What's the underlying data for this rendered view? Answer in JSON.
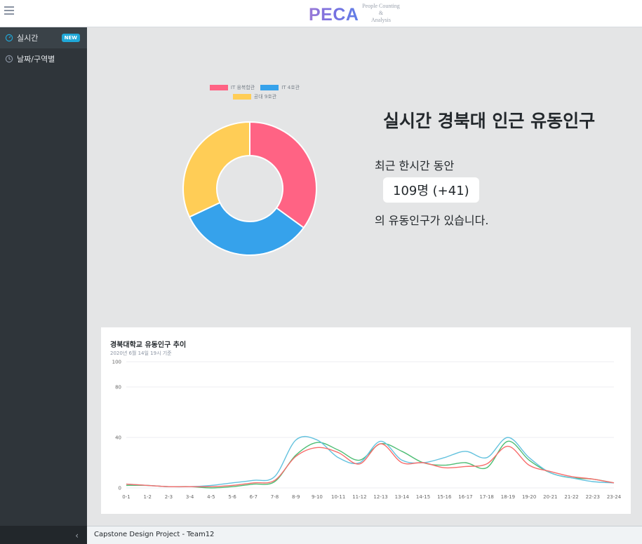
{
  "brand": {
    "logo": "PECA",
    "subtitle_line1": "People Counting",
    "subtitle_line2": "&",
    "subtitle_line3": "Analysis"
  },
  "sidebar": {
    "items": [
      {
        "label": "실시간",
        "icon": "speedometer-icon",
        "badge": "NEW",
        "active": true
      },
      {
        "label": "날짜/구역별",
        "icon": "clock-icon",
        "active": false
      }
    ],
    "collapse_glyph": "‹"
  },
  "stats": {
    "title": "실시간 경북대 인근 유동인구",
    "line1": "최근 한시간 동안",
    "highlight": "109명 (+41)",
    "line2": "의 유동인구가 있습니다."
  },
  "chart_data": [
    {
      "type": "pie",
      "variant": "doughnut",
      "legend_position": "top",
      "labels": [
        "IT 융복합관",
        "IT 4호관",
        "공대 9호관"
      ],
      "values": [
        35,
        33,
        32
      ],
      "colors": [
        "#ff6384",
        "#36a2eb",
        "#ffcd56"
      ]
    },
    {
      "type": "line",
      "title": "경북대학교 유동인구 추이",
      "subtitle": "2020년 6월 14일 19시 기준",
      "categories": [
        "0-1",
        "1-2",
        "2-3",
        "3-4",
        "4-5",
        "5-6",
        "6-7",
        "7-8",
        "8-9",
        "9-10",
        "10-11",
        "11-12",
        "12-13",
        "13-14",
        "14-15",
        "15-16",
        "16-17",
        "17-18",
        "18-19",
        "19-20",
        "20-21",
        "21-22",
        "22-23",
        "23-24"
      ],
      "ylim": [
        0,
        100
      ],
      "yticks": [
        0,
        40,
        80,
        100
      ],
      "grid": true,
      "series": [
        {
          "color": "#4dbd74",
          "values": [
            2,
            2,
            1,
            1,
            0,
            1,
            3,
            5,
            26,
            36,
            30,
            22,
            35,
            29,
            20,
            18,
            20,
            16,
            37,
            22,
            12,
            8,
            7,
            4
          ]
        },
        {
          "color": "#63c2de",
          "values": [
            3,
            2,
            1,
            1,
            2,
            4,
            6,
            9,
            38,
            38,
            24,
            20,
            37,
            22,
            20,
            24,
            29,
            24,
            40,
            24,
            12,
            8,
            5,
            4
          ]
        },
        {
          "color": "#f86c6b",
          "values": [
            3,
            2,
            1,
            1,
            1,
            2,
            4,
            6,
            25,
            32,
            28,
            19,
            35,
            20,
            20,
            16,
            17,
            19,
            33,
            18,
            13,
            9,
            7,
            4
          ]
        }
      ]
    }
  ],
  "footer": {
    "text": "Capstone Design Project - Team12"
  }
}
